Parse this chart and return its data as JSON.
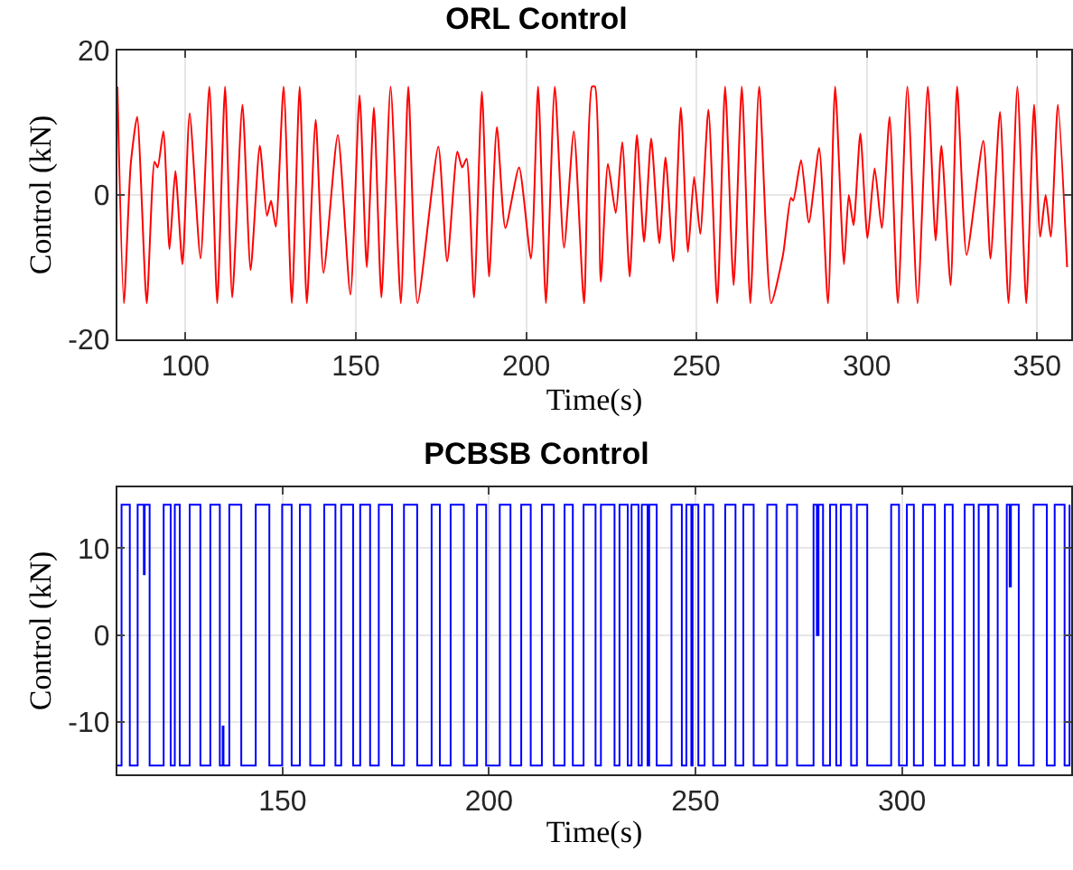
{
  "chart_data": [
    {
      "type": "line",
      "title": "ORL Control",
      "xlabel": "Time(s)",
      "ylabel": "Control (kN)",
      "color": "#ff0000",
      "xlim": [
        80,
        360
      ],
      "xticks": [
        100,
        150,
        200,
        250,
        300,
        350
      ],
      "ylim": [
        -20,
        20
      ],
      "yticks": [
        -20,
        0,
        20
      ],
      "grid": true,
      "line_style": "solid",
      "x": [
        80,
        81.9,
        83.9,
        85.8,
        88.6,
        90.9,
        91.8,
        93.5,
        95.3,
        97.0,
        99.1,
        101.2,
        104.4,
        107.0,
        109.3,
        111.6,
        113.7,
        116.7,
        119.1,
        121.8,
        123.9,
        125.1,
        126.5,
        128.8,
        131.2,
        133.5,
        135.6,
        138.2,
        140.5,
        144.7,
        148.4,
        151.1,
        153.2,
        155.3,
        157.5,
        160.2,
        163.2,
        165.4,
        168.1,
        174.2,
        176.8,
        179.8,
        181.2,
        182.5,
        184.7,
        187.0,
        189.1,
        191.4,
        193.9,
        197.9,
        201.4,
        203.5,
        205.8,
        208.4,
        211.1,
        214.0,
        217.0,
        219.3,
        220.2,
        221.9,
        224.0,
        226.3,
        228.2,
        230.4,
        232.5,
        234.6,
        236.7,
        239.1,
        240.9,
        243.2,
        245.4,
        247.5,
        249.3,
        251.1,
        253.5,
        256.1,
        258.4,
        260.9,
        263.3,
        265.8,
        268.4,
        271.9,
        275.4,
        277.7,
        278.4,
        280.7,
        283.0,
        286.0,
        288.6,
        290.7,
        293.3,
        294.7,
        296.1,
        298.1,
        300.2,
        302.3,
        304.4,
        306.7,
        309.1,
        311.9,
        314.9,
        317.9,
        320.2,
        321.9,
        324.6,
        326.5,
        329.3,
        334.2,
        336.3,
        339.1,
        341.6,
        344.2,
        346.8,
        349.1,
        350.9,
        352.5,
        354.0,
        356.1,
        358.8
      ],
      "values": [
        15,
        -15,
        4.2,
        10.8,
        -15,
        4.6,
        3.8,
        8.8,
        -7.5,
        3.3,
        -9.6,
        11.3,
        -8.8,
        15,
        -15,
        15,
        -14.2,
        12.5,
        -10.4,
        6.8,
        -2.9,
        -0.8,
        -4.4,
        15,
        -15,
        15,
        -15,
        10.4,
        -10.8,
        8.3,
        -13.8,
        13.8,
        -10,
        12.1,
        -14.2,
        15,
        -15,
        15,
        -15,
        6.7,
        -9.2,
        6,
        3.8,
        5,
        -14.2,
        14.3,
        -11.3,
        9.4,
        -4.6,
        3.8,
        -8.8,
        15,
        -15,
        15,
        -7.3,
        8.8,
        -15,
        15,
        15,
        -12,
        4.3,
        -2.5,
        7.3,
        -11.3,
        8.3,
        -6.5,
        7.8,
        -6.7,
        5.2,
        -9.2,
        12.1,
        -7.9,
        2.5,
        -5.4,
        11.8,
        -15,
        15,
        -12.5,
        15,
        -15,
        15,
        -15,
        -8.3,
        -0.4,
        -0.8,
        4.8,
        -3.8,
        6.5,
        -15,
        15,
        -9.6,
        0,
        -4.2,
        8.5,
        -6,
        3.7,
        -4.6,
        10.8,
        -15,
        15,
        -15,
        15,
        -6.3,
        6.8,
        -12.5,
        15,
        -8.3,
        7.5,
        -8.8,
        11.5,
        -15,
        15,
        -15,
        12.5,
        -5.8,
        0,
        -5.8,
        12.5,
        -10
      ]
    },
    {
      "type": "step",
      "title": "PCBSB Control",
      "xlabel": "Time(s)",
      "ylabel": "Control (kN)",
      "color": "#0000ff",
      "xlim": [
        110,
        341
      ],
      "xticks": [
        150,
        200,
        250,
        300
      ],
      "ylim": [
        -16,
        17
      ],
      "yticks": [
        -10,
        0,
        10
      ],
      "grid": true,
      "line_style": "solid",
      "x": [
        110,
        111.0,
        113.0,
        114.9,
        116.4,
        116.6,
        117.8,
        121.2,
        122.9,
        123.9,
        125.1,
        127.5,
        130.1,
        132.5,
        134.8,
        135.5,
        135.7,
        137.1,
        140.0,
        143.5,
        146.8,
        149.9,
        152.2,
        154.2,
        156.7,
        160.1,
        162.8,
        164.2,
        167.1,
        168.8,
        171.2,
        173.3,
        176.5,
        179.4,
        182.6,
        186.1,
        188.1,
        190.7,
        193.9,
        197.1,
        199.3,
        202.6,
        205.2,
        207.8,
        210.1,
        212.8,
        215.7,
        218.3,
        220.3,
        222.9,
        225.8,
        227.1,
        230.4,
        231.6,
        233.6,
        234.5,
        236.2,
        237.0,
        238.4,
        238.8,
        240.6,
        244.2,
        246.7,
        247.8,
        249.0,
        249.3,
        250.7,
        252.2,
        254.3,
        257.2,
        259.7,
        261.6,
        264.1,
        267.4,
        269.6,
        272.2,
        274.6,
        278.6,
        279.4,
        279.8,
        280.9,
        282.6,
        284.1,
        285.2,
        287.7,
        289.1,
        291.6,
        297.4,
        299.3,
        301.2,
        302.9,
        305.1,
        308.0,
        310.4,
        312.3,
        315.2,
        317.4,
        318.6,
        320.9,
        321.0,
        323.2,
        325.4,
        326.1,
        326.4,
        328.3,
        331.9,
        335.1,
        337.0,
        339.4,
        340.6
      ],
      "values": [
        -15,
        15,
        -15,
        15,
        7,
        15,
        -15,
        15,
        -15,
        15,
        -15,
        15,
        -15,
        15,
        -15,
        -10.5,
        -15,
        15,
        -15,
        15,
        -15,
        15,
        -15,
        15,
        -15,
        15,
        -15,
        15,
        -15,
        15,
        -15,
        15,
        -15,
        15,
        -15,
        15,
        -15,
        15,
        -15,
        15,
        -15,
        15,
        -15,
        15,
        -15,
        15,
        -15,
        15,
        -15,
        15,
        -15,
        15,
        -15,
        15,
        -15,
        15,
        -15,
        15,
        -15,
        15,
        -15,
        15,
        -15,
        15,
        -15,
        15,
        -15,
        15,
        -15,
        15,
        -15,
        15,
        -15,
        15,
        -15,
        15,
        -15,
        15,
        0,
        15,
        -15,
        15,
        -15,
        15,
        -15,
        15,
        -15,
        15,
        -15,
        15,
        -15,
        15,
        -15,
        15,
        -15,
        15,
        -15,
        15,
        -15,
        15,
        -15,
        15,
        5.6,
        15,
        -15,
        15,
        -15,
        15,
        -15,
        15
      ]
    }
  ]
}
